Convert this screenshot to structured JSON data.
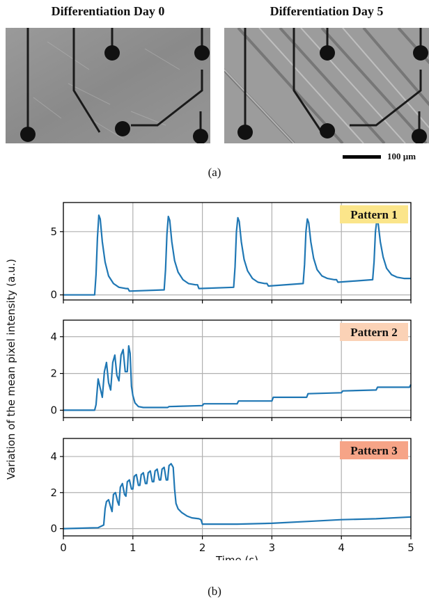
{
  "figure": {
    "micro_left_title": "Differentiation Day 0",
    "micro_right_title": "Differentiation Day 5",
    "scale_bar_label": "100 µm",
    "caption_a": "(a)",
    "caption_b": "(b)"
  },
  "colors": {
    "line": "#1f77b4",
    "grid": "#b0b0b0",
    "pattern1_bg": "#fbe58a",
    "pattern2_bg": "#fbd2b6",
    "pattern3_bg": "#f6a487"
  },
  "chart_data": {
    "type": "line",
    "xlabel": "Time (s)",
    "ylabel": "Variation of the mean pixel intensity (a.u.)",
    "xlim": [
      0,
      5
    ],
    "x_ticks": [
      "0",
      "1",
      "2",
      "3",
      "4",
      "5"
    ],
    "grid": true,
    "panels": [
      {
        "label": "Pattern 1",
        "ylim": [
          -0.4,
          7.3
        ],
        "y_ticks": [
          "0",
          "5"
        ],
        "series": [
          {
            "x": [
              0,
              0.45,
              0.47,
              0.49,
              0.51,
              0.53,
              0.56,
              0.6,
              0.65,
              0.72,
              0.8,
              0.9,
              0.93,
              0.95,
              1.45,
              1.47,
              1.49,
              1.51,
              1.53,
              1.56,
              1.6,
              1.65,
              1.72,
              1.8,
              1.9,
              1.93,
              1.95,
              2.45,
              2.47,
              2.49,
              2.51,
              2.53,
              2.56,
              2.6,
              2.65,
              2.72,
              2.8,
              2.9,
              2.93,
              2.95,
              3.45,
              3.47,
              3.49,
              3.51,
              3.53,
              3.56,
              3.6,
              3.65,
              3.72,
              3.8,
              3.9,
              3.93,
              3.95,
              4.45,
              4.47,
              4.49,
              4.51,
              4.53,
              4.56,
              4.6,
              4.65,
              4.72,
              4.8,
              4.9,
              4.93,
              4.95,
              5
            ],
            "y": [
              0,
              0,
              1.6,
              4.5,
              6.3,
              6.0,
              4.2,
              2.6,
              1.5,
              0.9,
              0.6,
              0.5,
              0.5,
              0.3,
              0.4,
              2.0,
              4.8,
              6.2,
              5.9,
              4.2,
              2.7,
              1.8,
              1.2,
              0.9,
              0.8,
              0.8,
              0.5,
              0.6,
              2.2,
              5.0,
              6.1,
              5.8,
              4.2,
              2.8,
              1.9,
              1.3,
              1.0,
              0.9,
              0.9,
              0.7,
              0.9,
              2.4,
              5.0,
              6.0,
              5.7,
              4.2,
              2.9,
              2.0,
              1.5,
              1.3,
              1.2,
              1.2,
              1.0,
              1.2,
              2.6,
              5.0,
              5.9,
              5.6,
              4.2,
              3.0,
              2.1,
              1.6,
              1.4,
              1.3,
              1.3,
              1.3,
              1.3
            ]
          }
        ]
      },
      {
        "label": "Pattern 2",
        "ylim": [
          -0.4,
          4.9
        ],
        "y_ticks": [
          "0",
          "2",
          "4"
        ],
        "series": [
          {
            "x": [
              0,
              0.45,
              0.47,
              0.5,
              0.53,
              0.56,
              0.59,
              0.62,
              0.65,
              0.68,
              0.71,
              0.74,
              0.77,
              0.8,
              0.83,
              0.86,
              0.89,
              0.92,
              0.94,
              0.96,
              0.98,
              1.0,
              1.03,
              1.08,
              1.15,
              1.5,
              1.52,
              2.0,
              2.02,
              2.5,
              2.52,
              3.0,
              3.02,
              3.5,
              3.52,
              4.0,
              4.02,
              4.5,
              4.52,
              4.98,
              5.0
            ],
            "y": [
              0,
              0,
              0.3,
              1.7,
              1.2,
              0.7,
              2.1,
              2.6,
              1.5,
              1.1,
              2.6,
              3.0,
              1.9,
              1.6,
              3.0,
              3.3,
              2.1,
              2.1,
              3.5,
              3.1,
              1.3,
              0.8,
              0.4,
              0.2,
              0.15,
              0.15,
              0.2,
              0.25,
              0.35,
              0.35,
              0.5,
              0.5,
              0.7,
              0.7,
              0.9,
              0.95,
              1.05,
              1.1,
              1.25,
              1.25,
              1.4
            ]
          }
        ]
      },
      {
        "label": "Pattern 3",
        "ylim": [
          -0.4,
          5.0
        ],
        "y_ticks": [
          "0",
          "2",
          "4"
        ],
        "series": [
          {
            "x": [
              0,
              0.5,
              0.58,
              0.6,
              0.62,
              0.65,
              0.68,
              0.7,
              0.72,
              0.75,
              0.78,
              0.8,
              0.82,
              0.85,
              0.88,
              0.9,
              0.92,
              0.95,
              0.98,
              1.0,
              1.02,
              1.05,
              1.08,
              1.1,
              1.12,
              1.15,
              1.18,
              1.2,
              1.22,
              1.25,
              1.28,
              1.3,
              1.32,
              1.35,
              1.38,
              1.4,
              1.42,
              1.45,
              1.48,
              1.5,
              1.52,
              1.55,
              1.58,
              1.6,
              1.62,
              1.65,
              1.7,
              1.78,
              1.85,
              1.95,
              1.98,
              2.0,
              2.5,
              3.0,
              3.5,
              4.0,
              4.5,
              5.0
            ],
            "y": [
              0,
              0.05,
              0.2,
              1.1,
              1.5,
              1.6,
              1.2,
              0.95,
              1.9,
              2.0,
              1.5,
              1.3,
              2.3,
              2.5,
              1.9,
              1.8,
              2.6,
              2.7,
              2.2,
              2.2,
              2.9,
              3.0,
              2.4,
              2.4,
              3.0,
              3.1,
              2.5,
              2.5,
              3.1,
              3.2,
              2.6,
              2.6,
              3.2,
              3.3,
              2.7,
              2.7,
              3.3,
              3.4,
              2.7,
              2.7,
              3.5,
              3.6,
              3.4,
              2.2,
              1.4,
              1.1,
              0.9,
              0.7,
              0.6,
              0.55,
              0.5,
              0.25,
              0.25,
              0.3,
              0.4,
              0.5,
              0.55,
              0.65
            ]
          }
        ]
      }
    ]
  }
}
